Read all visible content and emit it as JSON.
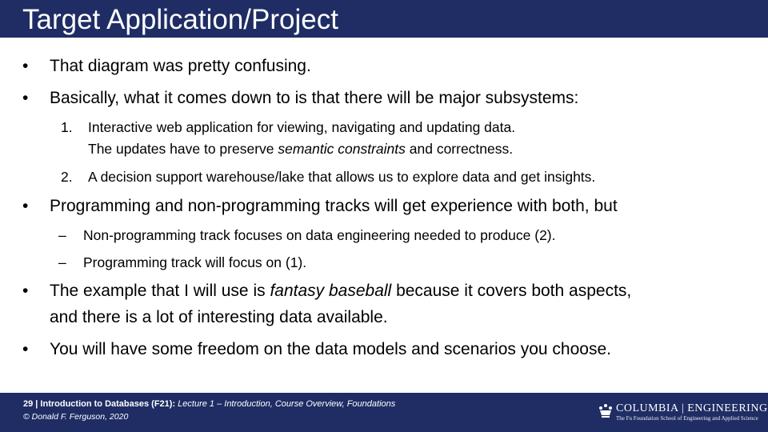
{
  "slide": {
    "title": "Target Application/Project",
    "bullets": [
      {
        "mark": "•",
        "text": "That diagram was pretty confusing."
      },
      {
        "mark": "•",
        "text": "Basically, what it comes down to is that there will be major subsystems:"
      },
      {
        "mark": "1.",
        "text": "Interactive web application for viewing, navigating and updating data.",
        "line2_pre": "The updates have to preserve ",
        "line2_em": "semantic constraints",
        "line2_post": " and correctness."
      },
      {
        "mark": "2.",
        "text": "A decision support warehouse/lake that allows us to explore data and get insights."
      },
      {
        "mark": "•",
        "text": "Programming and non-programming tracks will get experience with both, but"
      },
      {
        "mark": "–",
        "text": "Non-programming track focuses on data engineering needed to produce (2)."
      },
      {
        "mark": "–",
        "text": "Programming track will focus on (1)."
      },
      {
        "mark": "•",
        "pre": "The example that I will use is ",
        "em": "fantasy baseball",
        "post": " because it covers both aspects,",
        "line2": "and there is a lot of interesting data available."
      },
      {
        "mark": "•",
        "text": "You will have some freedom on the data models and scenarios you choose."
      }
    ]
  },
  "footer": {
    "line1_bold": "29 | Introduction to Databases (F21):",
    "line1_italic": " Lecture 1 – Introduction, Course Overview, Foundations",
    "line2": "© Donald F. Ferguson, 2020",
    "logo_main": "COLUMBIA | ENGINEERING",
    "logo_sub": "The Fu Foundation School of Engineering and Applied Science",
    "logo_icon": "crown-icon"
  }
}
